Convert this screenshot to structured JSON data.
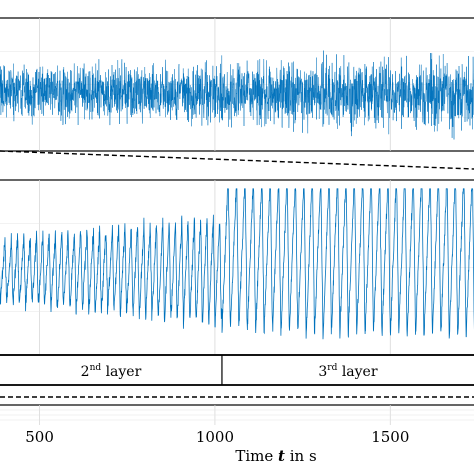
{
  "chart_data": {
    "type": "line",
    "xlabel_prefix": "Time ",
    "xlabel_var": "t",
    "xlabel_suffix": " in s",
    "xlim": [
      370,
      1800
    ],
    "xticks": [
      500,
      1000,
      1500
    ],
    "grid": true,
    "series_color": "#0072BD",
    "panels": [
      {
        "name": "upper",
        "signal": {
          "kind": "dense_noise",
          "x_range": [
            370,
            1800
          ],
          "center_start": 0.55,
          "center_end": 0.58,
          "amplitude_start": 0.28,
          "amplitude_end": 0.38
        }
      },
      {
        "name": "lower",
        "signal": {
          "kind": "sawtooth_oscillation",
          "segments": [
            {
              "x_range": [
                370,
                1020
              ],
              "period": 18,
              "amplitude_start": 0.18,
              "amplitude_end": 0.32,
              "center": 0.52
            },
            {
              "x_range": [
                1020,
                1800
              ],
              "period": 24,
              "amplitude_start": 0.45,
              "amplitude_end": 0.5,
              "center": 0.42
            }
          ]
        }
      }
    ],
    "layers": [
      {
        "label_num": "2",
        "label_sup": "nd",
        "label_word": " layer",
        "x_start": 370,
        "x_end": 1020
      },
      {
        "label_num": "3",
        "label_sup": "rd",
        "label_word": " layer",
        "x_start": 1020,
        "x_end": 1800
      }
    ]
  }
}
